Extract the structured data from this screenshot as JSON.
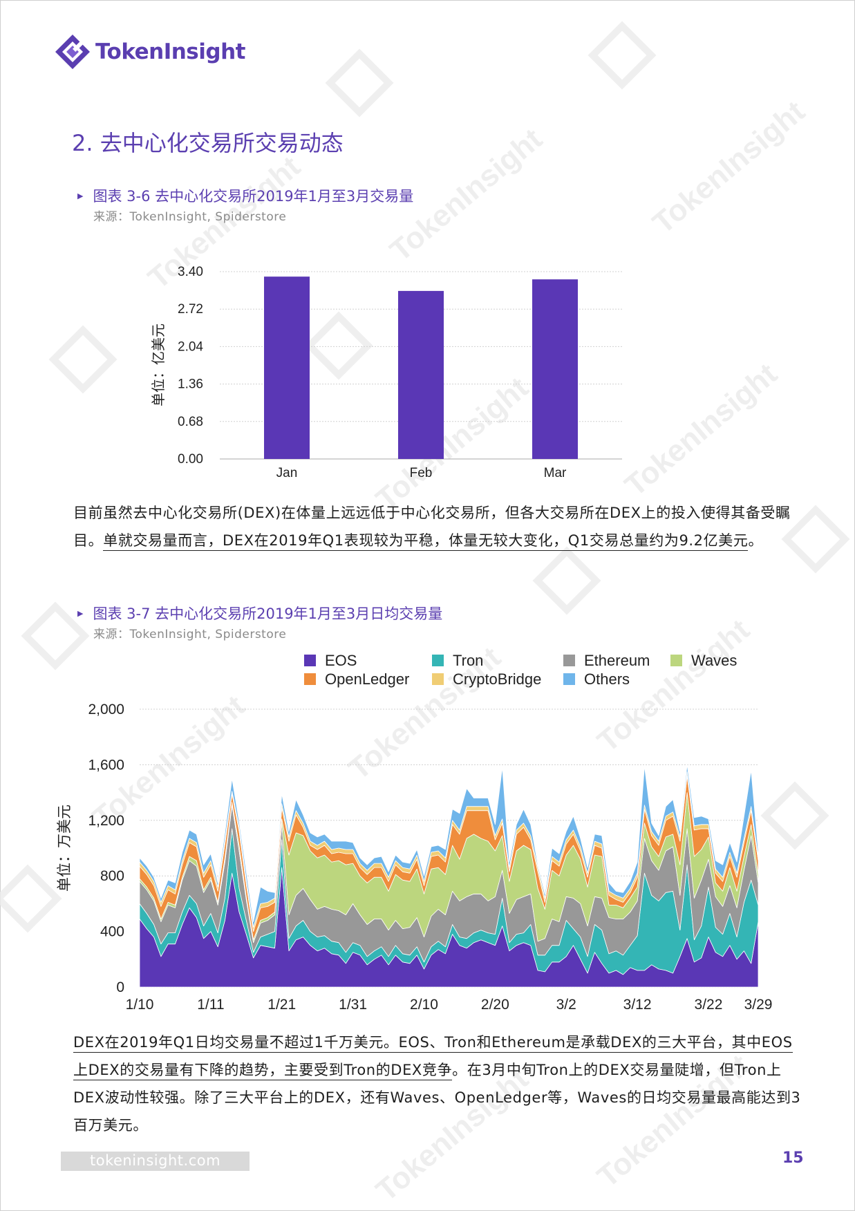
{
  "brand": {
    "name": "TokenInsight"
  },
  "section_title": "2. 去中心化交易所交易动态",
  "figure1": {
    "title": "图表 3-6 去中心化交易所2019年1月至3月交易量",
    "source": "来源：TokenInsight, Spiderstore",
    "ylabel": "单位：亿美元"
  },
  "paragraph1": {
    "plain1": "目前虽然去中心化交易所(DEX)在体量上远远低于中心化交易所，但各大交易所在DEX上的投入使得其备受瞩目。",
    "underlined": "单就交易量而言，DEX在2019年Q1表现较为平稳，体量无较大变化，Q1交易总量约为9.2亿美元",
    "plain2": "。"
  },
  "figure2": {
    "title": "图表 3-7 去中心化交易所2019年1月至3月日均交易量",
    "source": "来源：TokenInsight, Spiderstore",
    "ylabel": "单位：万美元"
  },
  "paragraph2": {
    "underlined": "DEX在2019年Q1日均交易量不超过1千万美元。EOS、Tron和Ethereum是承载DEX的三大平台，其中EOS上DEX的交易量有下降的趋势，主要受到Tron的DEX竞争",
    "plain": "。在3月中旬Tron上的DEX交易量陡增，但Tron上DEX波动性较强。除了三大平台上的DEX，还有Waves、OpenLedger等，Waves的日均交易量最高能达到3百万美元。"
  },
  "footer": {
    "url": "tokeninsight.com",
    "page": "15"
  },
  "chart_data": [
    {
      "type": "bar",
      "categories": [
        "Jan",
        "Feb",
        "Mar"
      ],
      "values": [
        3.31,
        3.05,
        3.26
      ],
      "ylim": [
        0,
        3.4
      ],
      "yticks": [
        "0.00",
        "0.68",
        "1.36",
        "2.04",
        "2.72",
        "3.40"
      ],
      "ylabel": "单位：亿美元",
      "color": "#5a37b5",
      "grid": true
    },
    {
      "type": "area",
      "stacked": true,
      "ylabel": "单位：万美元",
      "ylim": [
        0,
        2000
      ],
      "yticks": [
        "0",
        "400",
        "800",
        "1,200",
        "1,600",
        "2,000"
      ],
      "xticks": [
        "1/10",
        "1/11",
        "1/21",
        "1/31",
        "2/10",
        "2/20",
        "3/2",
        "3/12",
        "3/22",
        "3/29"
      ],
      "xtick_days": [
        0,
        10,
        20,
        30,
        40,
        50,
        60,
        70,
        80,
        87
      ],
      "legend_position": "top",
      "grid": true,
      "series": [
        {
          "name": "EOS",
          "color": "#5a37b5",
          "values": [
            490,
            420,
            360,
            220,
            310,
            310,
            450,
            570,
            500,
            350,
            400,
            290,
            480,
            820,
            540,
            380,
            210,
            300,
            290,
            280,
            860,
            260,
            340,
            360,
            300,
            260,
            280,
            240,
            230,
            170,
            250,
            230,
            160,
            200,
            230,
            160,
            230,
            180,
            170,
            230,
            130,
            230,
            270,
            240,
            380,
            300,
            280,
            320,
            340,
            320,
            300,
            440,
            260,
            300,
            320,
            300,
            120,
            110,
            180,
            180,
            220,
            300,
            200,
            100,
            250,
            170,
            100,
            120,
            90,
            140,
            120,
            120,
            160,
            130,
            120,
            100,
            220,
            350,
            180,
            210,
            360,
            250,
            220,
            300,
            200,
            260,
            170,
            470
          ]
        },
        {
          "name": "Tron",
          "color": "#34b5b5",
          "values": [
            110,
            110,
            90,
            90,
            80,
            80,
            90,
            90,
            100,
            90,
            130,
            100,
            160,
            320,
            170,
            100,
            40,
            60,
            90,
            120,
            200,
            90,
            100,
            120,
            100,
            100,
            90,
            90,
            90,
            80,
            70,
            70,
            60,
            60,
            60,
            60,
            70,
            60,
            60,
            60,
            50,
            60,
            60,
            50,
            70,
            60,
            70,
            70,
            70,
            70,
            80,
            200,
            60,
            80,
            70,
            150,
            110,
            120,
            120,
            120,
            260,
            120,
            160,
            120,
            200,
            240,
            140,
            140,
            140,
            160,
            250,
            700,
            500,
            490,
            560,
            590,
            190,
            530,
            160,
            230,
            360,
            180,
            160,
            230,
            160,
            350,
            600,
            120
          ]
        },
        {
          "name": "Ethereum",
          "color": "#989898",
          "values": [
            160,
            170,
            170,
            160,
            200,
            180,
            230,
            250,
            270,
            240,
            240,
            200,
            260,
            170,
            270,
            150,
            70,
            100,
            100,
            120,
            120,
            170,
            220,
            230,
            230,
            200,
            210,
            230,
            230,
            270,
            280,
            220,
            230,
            230,
            200,
            190,
            180,
            180,
            200,
            210,
            180,
            220,
            230,
            230,
            240,
            260,
            300,
            280,
            260,
            230,
            270,
            200,
            210,
            250,
            260,
            220,
            100,
            120,
            190,
            170,
            170,
            220,
            240,
            220,
            200,
            230,
            260,
            230,
            260,
            240,
            250,
            250,
            250,
            220,
            300,
            320,
            250,
            260,
            300,
            330,
            200,
            220,
            200,
            200,
            210,
            230,
            320,
            160
          ]
        },
        {
          "name": "Waves",
          "color": "#bcd67e",
          "values": [
            20,
            20,
            20,
            20,
            20,
            20,
            20,
            30,
            40,
            20,
            20,
            20,
            30,
            20,
            40,
            20,
            20,
            20,
            20,
            20,
            30,
            430,
            450,
            380,
            350,
            370,
            370,
            340,
            360,
            360,
            290,
            280,
            300,
            300,
            300,
            280,
            330,
            350,
            330,
            350,
            310,
            340,
            300,
            290,
            330,
            300,
            420,
            430,
            400,
            430,
            330,
            250,
            230,
            350,
            370,
            320,
            380,
            210,
            350,
            330,
            300,
            380,
            320,
            280,
            300,
            300,
            90,
            100,
            80,
            100,
            100,
            110,
            100,
            100,
            100,
            90,
            220,
            260,
            300,
            220,
            160,
            100,
            110,
            130,
            120,
            100,
            80,
            60
          ]
        },
        {
          "name": "OpenLedger",
          "color": "#ef8d3c",
          "values": [
            90,
            90,
            90,
            90,
            90,
            80,
            90,
            100,
            100,
            90,
            90,
            80,
            100,
            60,
            100,
            90,
            60,
            90,
            80,
            70,
            80,
            100,
            130,
            60,
            40,
            60,
            70,
            60,
            60,
            80,
            70,
            60,
            60,
            70,
            70,
            70,
            70,
            60,
            60,
            70,
            60,
            90,
            90,
            90,
            150,
            180,
            200,
            170,
            200,
            220,
            80,
            90,
            70,
            120,
            130,
            70,
            120,
            50,
            70,
            70,
            80,
            80,
            60,
            70,
            70,
            60,
            70,
            40,
            40,
            40,
            70,
            100,
            80,
            80,
            120,
            130,
            170,
            120,
            190,
            150,
            60,
            70,
            70,
            80,
            100,
            100,
            100,
            100
          ]
        },
        {
          "name": "CryptoBridge",
          "color": "#f0cd74",
          "values": [
            30,
            30,
            30,
            30,
            30,
            30,
            30,
            30,
            30,
            30,
            30,
            30,
            30,
            20,
            30,
            30,
            30,
            30,
            30,
            30,
            30,
            30,
            30,
            30,
            30,
            30,
            30,
            30,
            30,
            30,
            30,
            30,
            30,
            30,
            30,
            30,
            30,
            30,
            30,
            30,
            30,
            30,
            30,
            30,
            30,
            30,
            30,
            30,
            30,
            30,
            30,
            30,
            30,
            30,
            30,
            30,
            30,
            30,
            30,
            30,
            30,
            30,
            30,
            30,
            30,
            30,
            30,
            30,
            30,
            30,
            30,
            30,
            30,
            30,
            30,
            30,
            30,
            30,
            30,
            30,
            30,
            30,
            30,
            30,
            30,
            30,
            30,
            30
          ]
        },
        {
          "name": "Others",
          "color": "#6fb5ea",
          "values": [
            30,
            30,
            30,
            30,
            40,
            50,
            60,
            60,
            60,
            60,
            50,
            30,
            50,
            90,
            40,
            60,
            40,
            120,
            80,
            40,
            70,
            40,
            80,
            60,
            60,
            60,
            50,
            60,
            50,
            60,
            50,
            40,
            40,
            40,
            50,
            40,
            40,
            40,
            40,
            40,
            40,
            40,
            40,
            60,
            80,
            120,
            130,
            60,
            60,
            60,
            80,
            370,
            40,
            40,
            100,
            80,
            20,
            30,
            60,
            60,
            60,
            100,
            60,
            40,
            50,
            60,
            60,
            30,
            40,
            50,
            80,
            280,
            60,
            40,
            70,
            90,
            40,
            50,
            60,
            60,
            40,
            60,
            90,
            70,
            80,
            160,
            260,
            40
          ]
        }
      ]
    }
  ]
}
